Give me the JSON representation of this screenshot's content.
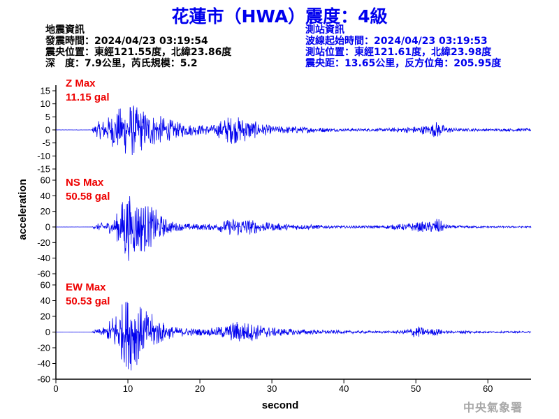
{
  "title": "花蓮市（HWA）震度：4級",
  "quake_info": {
    "heading": "地震資訊",
    "origin_time": "發震時間：2024/04/23 03:19:54",
    "epicenter": "震央位置：東經121.55度，北緯23.86度",
    "depth_magnitude": "深　度：7.9公里，芮氏規模：5.2"
  },
  "station_info": {
    "heading": "測站資訊",
    "wave_start": "波線起始時間：2024/04/23 03:19:53",
    "location": "測站位置：東經121.61度，北緯23.98度",
    "distance_azimuth": "震央距：13.65公里，反方位角：205.95度"
  },
  "agency": "中央氣象署",
  "colors": {
    "title": "#0000ee",
    "trace": "#0000ee",
    "max_label": "#ee0000",
    "station_info": "#0000ee",
    "agency": "#a8a8a8"
  },
  "chart_data": {
    "type": "line",
    "xlabel": "second",
    "ylabel": "acceleration",
    "xlim": [
      0,
      66
    ],
    "xticks": [
      0,
      10,
      20,
      30,
      40,
      50,
      60
    ],
    "grid": false,
    "panels": [
      {
        "name": "Z",
        "max_label": "Z Max",
        "max_value": "11.15 gal",
        "ylim": [
          -15,
          15
        ],
        "yticks": [
          -15,
          -10,
          -5,
          0,
          5,
          10,
          15
        ],
        "envelope": [
          [
            0,
            0.05
          ],
          [
            5,
            0.05
          ],
          [
            5.2,
            1.5
          ],
          [
            6,
            3.5
          ],
          [
            7,
            4.5
          ],
          [
            8,
            7
          ],
          [
            9,
            9
          ],
          [
            10,
            10.5
          ],
          [
            10.6,
            11.1
          ],
          [
            11,
            9
          ],
          [
            12,
            8.5
          ],
          [
            13,
            7
          ],
          [
            14,
            6
          ],
          [
            15,
            5
          ],
          [
            16,
            4
          ],
          [
            17,
            3
          ],
          [
            18,
            2.5
          ],
          [
            20,
            2
          ],
          [
            22,
            2
          ],
          [
            23,
            4
          ],
          [
            24,
            5.5
          ],
          [
            26,
            5
          ],
          [
            27,
            4
          ],
          [
            28,
            3
          ],
          [
            30,
            1.5
          ],
          [
            33,
            1.5
          ],
          [
            35,
            1.2
          ],
          [
            38,
            0.8
          ],
          [
            40,
            0.5
          ],
          [
            45,
            0.6
          ],
          [
            48,
            1
          ],
          [
            50,
            1.5
          ],
          [
            52,
            2
          ],
          [
            53,
            3.5
          ],
          [
            54,
            1.5
          ],
          [
            56,
            0.6
          ],
          [
            60,
            0.5
          ],
          [
            66,
            0.6
          ]
        ]
      },
      {
        "name": "NS",
        "max_label": "NS Max",
        "max_value": "50.58 gal",
        "ylim": [
          -60,
          60
        ],
        "yticks": [
          -60,
          -40,
          -20,
          0,
          20,
          40,
          60
        ],
        "envelope": [
          [
            0,
            0.1
          ],
          [
            5,
            0.1
          ],
          [
            5.2,
            2
          ],
          [
            6,
            5
          ],
          [
            7,
            7
          ],
          [
            8,
            10
          ],
          [
            9,
            28
          ],
          [
            9.6,
            50.5
          ],
          [
            10.4,
            40
          ],
          [
            11,
            38
          ],
          [
            12,
            35
          ],
          [
            13,
            28
          ],
          [
            14,
            22
          ],
          [
            15,
            12
          ],
          [
            16,
            8
          ],
          [
            17,
            5
          ],
          [
            20,
            4
          ],
          [
            22,
            4
          ],
          [
            24,
            10
          ],
          [
            25,
            13
          ],
          [
            26,
            12
          ],
          [
            28,
            8
          ],
          [
            30,
            5
          ],
          [
            33,
            4
          ],
          [
            36,
            3
          ],
          [
            38,
            2
          ],
          [
            40,
            1.5
          ],
          [
            45,
            2
          ],
          [
            48,
            4
          ],
          [
            50,
            6
          ],
          [
            52,
            7
          ],
          [
            53,
            12
          ],
          [
            54,
            4
          ],
          [
            55,
            2
          ],
          [
            58,
            1.5
          ],
          [
            60,
            1.2
          ],
          [
            66,
            1
          ]
        ]
      },
      {
        "name": "EW",
        "max_label": "EW Max",
        "max_value": "50.53 gal",
        "ylim": [
          -60,
          60
        ],
        "yticks": [
          -60,
          -40,
          -20,
          0,
          20,
          40,
          60
        ],
        "envelope": [
          [
            0,
            0.1
          ],
          [
            5,
            0.1
          ],
          [
            5.2,
            2
          ],
          [
            6,
            4
          ],
          [
            7,
            7
          ],
          [
            8,
            25
          ],
          [
            9,
            35
          ],
          [
            10,
            48
          ],
          [
            10.8,
            50.5
          ],
          [
            11.5,
            38
          ],
          [
            12,
            30
          ],
          [
            13,
            25
          ],
          [
            14,
            20
          ],
          [
            15,
            12
          ],
          [
            16,
            8
          ],
          [
            17,
            6
          ],
          [
            19,
            5
          ],
          [
            21,
            4
          ],
          [
            24,
            10
          ],
          [
            25,
            15
          ],
          [
            26,
            14
          ],
          [
            28,
            10
          ],
          [
            30,
            6
          ],
          [
            33,
            4
          ],
          [
            36,
            3
          ],
          [
            40,
            2
          ],
          [
            45,
            1.5
          ],
          [
            48,
            2
          ],
          [
            50,
            8
          ],
          [
            51,
            6
          ],
          [
            52,
            4
          ],
          [
            53,
            5
          ],
          [
            54,
            2
          ],
          [
            56,
            1.5
          ],
          [
            57,
            3
          ],
          [
            58,
            1.5
          ],
          [
            60,
            1.2
          ],
          [
            66,
            1
          ]
        ]
      }
    ]
  }
}
